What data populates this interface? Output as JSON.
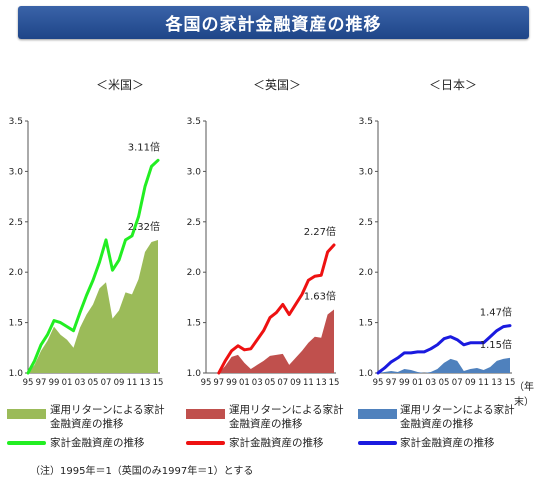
{
  "title": "各国の家計金融資産の推移",
  "x_unit": "（年末）",
  "note": "（注）1995年＝1（英国のみ1997年＝1）とする",
  "legend": {
    "us_bar": "運用リターンによる家計金融資産の推移",
    "us_line": "家計金融資産の推移",
    "uk_bar": "運用リターンによる家計金融資産の推移",
    "uk_line": "家計金融資産の推移",
    "jp_bar": "運用リターンによる家計金融資産の推移",
    "jp_line": "家計金融資産の推移"
  },
  "colors": {
    "us_area": "#9bbb59",
    "us_line": "#22ee22",
    "uk_area": "#c0504d",
    "uk_line": "#ee1111",
    "jp_area": "#4f81bd",
    "jp_line": "#1a1adf",
    "title_bg": "#2a5298"
  },
  "chart_data": [
    {
      "type": "area+line",
      "title": "＜米国＞",
      "ylim": [
        1.0,
        3.5
      ],
      "yticks": [
        "1.0",
        "1.5",
        "2.0",
        "2.5",
        "3.0",
        "3.5"
      ],
      "xticks": [
        "95",
        "97",
        "99",
        "01",
        "03",
        "05",
        "07",
        "09",
        "11",
        "13",
        "15"
      ],
      "x": [
        1995,
        1996,
        1997,
        1998,
        1999,
        2000,
        2001,
        2002,
        2003,
        2004,
        2005,
        2006,
        2007,
        2008,
        2009,
        2010,
        2011,
        2012,
        2013,
        2014,
        2015
      ],
      "series": [
        {
          "name": "運用リターンによる家計金融資産の推移",
          "style": "area",
          "values": [
            1.0,
            1.08,
            1.22,
            1.32,
            1.46,
            1.38,
            1.33,
            1.25,
            1.45,
            1.58,
            1.68,
            1.84,
            1.9,
            1.54,
            1.62,
            1.8,
            1.78,
            1.93,
            2.2,
            2.3,
            2.32
          ]
        },
        {
          "name": "家計金融資産の推移",
          "style": "line",
          "values": [
            1.0,
            1.12,
            1.28,
            1.38,
            1.52,
            1.5,
            1.46,
            1.42,
            1.6,
            1.77,
            1.92,
            2.1,
            2.32,
            2.02,
            2.12,
            2.32,
            2.36,
            2.55,
            2.85,
            3.05,
            3.11
          ]
        }
      ],
      "labels": {
        "line_end": "3.11倍",
        "area_end": "2.32倍"
      }
    },
    {
      "type": "area+line",
      "title": "＜英国＞",
      "ylim": [
        1.0,
        3.5
      ],
      "yticks": [
        "1.0",
        "1.5",
        "2.0",
        "2.5",
        "3.0",
        "3.5"
      ],
      "xticks": [
        "95",
        "97",
        "99",
        "01",
        "03",
        "05",
        "07",
        "09",
        "11",
        "13",
        "15"
      ],
      "x": [
        1997,
        1998,
        1999,
        2000,
        2001,
        2002,
        2003,
        2004,
        2005,
        2006,
        2007,
        2008,
        2009,
        2010,
        2011,
        2012,
        2013,
        2014,
        2015
      ],
      "series": [
        {
          "name": "運用リターンによる家計金融資産の推移",
          "style": "area",
          "values": [
            1.0,
            1.07,
            1.16,
            1.18,
            1.1,
            1.04,
            1.08,
            1.12,
            1.17,
            1.18,
            1.19,
            1.08,
            1.15,
            1.22,
            1.3,
            1.36,
            1.35,
            1.58,
            1.63
          ]
        },
        {
          "name": "家計金融資産の推移",
          "style": "line",
          "values": [
            1.0,
            1.12,
            1.22,
            1.27,
            1.23,
            1.24,
            1.33,
            1.42,
            1.55,
            1.6,
            1.68,
            1.58,
            1.68,
            1.78,
            1.92,
            1.96,
            1.97,
            2.2,
            2.27
          ]
        }
      ],
      "labels": {
        "line_end": "2.27倍",
        "area_end": "1.63倍"
      }
    },
    {
      "type": "area+line",
      "title": "＜日本＞",
      "ylim": [
        1.0,
        3.5
      ],
      "yticks": [
        "1.0",
        "1.5",
        "2.0",
        "2.5",
        "3.0",
        "3.5"
      ],
      "xticks": [
        "95",
        "97",
        "99",
        "01",
        "03",
        "05",
        "07",
        "09",
        "11",
        "13",
        "15"
      ],
      "x": [
        1995,
        1996,
        1997,
        1998,
        1999,
        2000,
        2001,
        2002,
        2003,
        2004,
        2005,
        2006,
        2007,
        2008,
        2009,
        2010,
        2011,
        2012,
        2013,
        2014,
        2015
      ],
      "series": [
        {
          "name": "運用リターンによる家計金融資産の推移",
          "style": "area",
          "values": [
            1.0,
            1.01,
            1.02,
            1.01,
            1.04,
            1.03,
            1.01,
            0.99,
            1.01,
            1.04,
            1.1,
            1.14,
            1.12,
            1.02,
            1.04,
            1.05,
            1.03,
            1.06,
            1.12,
            1.14,
            1.15
          ]
        },
        {
          "name": "家計金融資産の推移",
          "style": "line",
          "values": [
            1.0,
            1.05,
            1.11,
            1.15,
            1.2,
            1.2,
            1.21,
            1.21,
            1.24,
            1.28,
            1.34,
            1.36,
            1.33,
            1.28,
            1.3,
            1.3,
            1.3,
            1.36,
            1.42,
            1.46,
            1.47
          ]
        }
      ],
      "labels": {
        "line_end": "1.47倍",
        "area_end": "1.15倍"
      }
    }
  ]
}
